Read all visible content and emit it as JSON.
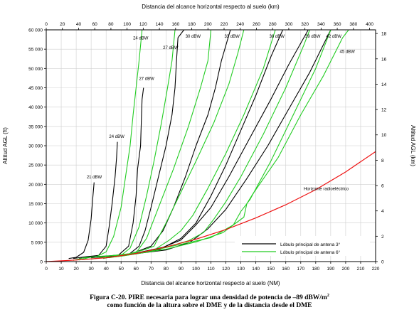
{
  "chart_data": {
    "type": "line",
    "title_top": "Distancia del alcance horizontal respecto al suelo (km)",
    "xlabel": "Distancia del alcance horizontal respecto al suelo (NM)",
    "ylabel_left": "Altitud AGL (ft)",
    "ylabel_right": "Altitud AGL (km)",
    "xlim": [
      0,
      220
    ],
    "ylim": [
      0,
      60000
    ],
    "x_ticks": [
      0,
      10,
      20,
      30,
      40,
      50,
      60,
      70,
      80,
      90,
      100,
      110,
      120,
      130,
      140,
      150,
      160,
      170,
      180,
      190,
      200,
      210,
      220
    ],
    "y_ticks": [
      0,
      5000,
      10000,
      15000,
      20000,
      25000,
      30000,
      35000,
      40000,
      45000,
      50000,
      55000,
      60000
    ],
    "y_tick_labels": [
      "0",
      "5 000",
      "10 000",
      "15 000",
      "20 000",
      "25 000",
      "30 000",
      "35 000",
      "40 000",
      "45 000",
      "50 000",
      "55 000",
      "60 000"
    ],
    "top_ticks_km": [
      0,
      20,
      40,
      60,
      80,
      100,
      120,
      140,
      160,
      180,
      200,
      220,
      240,
      260,
      280,
      300,
      320,
      340,
      360,
      380,
      400
    ],
    "right_ticks_km": [
      0,
      2,
      4,
      6,
      8,
      10,
      12,
      14,
      16,
      18
    ],
    "grid": true,
    "legend": {
      "position": "bottom-right",
      "entries": [
        {
          "label": "Lóbulo principal de antena 3°",
          "color": "#000000"
        },
        {
          "label": "Lóbulo principal de antena 6°",
          "color": "#22cc22"
        }
      ]
    },
    "horizon": {
      "label": "Horizonte radioeléctrico",
      "color": "#ee1111",
      "points": [
        [
          0,
          0
        ],
        [
          20,
          400
        ],
        [
          40,
          1000
        ],
        [
          60,
          2100
        ],
        [
          80,
          3800
        ],
        [
          100,
          5800
        ],
        [
          120,
          8300
        ],
        [
          140,
          11300
        ],
        [
          160,
          14700
        ],
        [
          180,
          18600
        ],
        [
          200,
          23200
        ],
        [
          220,
          28500
        ]
      ]
    },
    "series": [
      {
        "label": "21 dBW",
        "color": "#000000",
        "points": [
          [
            15,
            800
          ],
          [
            20,
            1100
          ],
          [
            25,
            2400
          ],
          [
            28,
            5500
          ],
          [
            30,
            11000
          ],
          [
            31,
            16000
          ],
          [
            32,
            20500
          ]
        ]
      },
      {
        "label": "24 dBW",
        "color": "#000000",
        "points": [
          [
            18,
            800
          ],
          [
            25,
            1200
          ],
          [
            35,
            1600
          ],
          [
            40,
            4000
          ],
          [
            42,
            9000
          ],
          [
            44,
            15000
          ],
          [
            46,
            22000
          ],
          [
            47,
            27000
          ],
          [
            47.5,
            31000
          ]
        ]
      },
      {
        "label": "27 dBW",
        "color": "#000000",
        "points": [
          [
            22,
            800
          ],
          [
            30,
            1300
          ],
          [
            40,
            1300
          ],
          [
            48,
            1600
          ],
          [
            55,
            4000
          ],
          [
            58,
            10000
          ],
          [
            60,
            17000
          ],
          [
            61,
            24000
          ],
          [
            63,
            30000
          ],
          [
            63.5,
            36000
          ],
          [
            64,
            42000
          ],
          [
            65,
            45000
          ]
        ]
      },
      {
        "label": "30 dBW",
        "color": "#000000",
        "points": [
          [
            30,
            1000
          ],
          [
            45,
            1600
          ],
          [
            50,
            1700
          ],
          [
            55,
            1800
          ],
          [
            62,
            4000
          ],
          [
            66,
            8000
          ],
          [
            70,
            14000
          ],
          [
            75,
            22000
          ],
          [
            80,
            30000
          ],
          [
            84,
            38000
          ],
          [
            86,
            45000
          ],
          [
            87,
            52000
          ],
          [
            88,
            58000
          ],
          [
            92,
            60000
          ]
        ]
      },
      {
        "label": "33 dBW",
        "color": "#000000",
        "points": [
          [
            40,
            1200
          ],
          [
            55,
            1900
          ],
          [
            60,
            2500
          ],
          [
            70,
            4000
          ],
          [
            78,
            8000
          ],
          [
            85,
            14000
          ],
          [
            93,
            22000
          ],
          [
            100,
            30000
          ],
          [
            108,
            38000
          ],
          [
            113,
            45000
          ],
          [
            117,
            52000
          ],
          [
            123,
            60000
          ]
        ]
      },
      {
        "label": "36 dBW",
        "color": "#000000",
        "points": [
          [
            45,
            1500
          ],
          [
            60,
            2000
          ],
          [
            75,
            3000
          ],
          [
            90,
            6000
          ],
          [
            100,
            10000
          ],
          [
            110,
            17000
          ],
          [
            120,
            25000
          ],
          [
            130,
            34000
          ],
          [
            140,
            43000
          ],
          [
            150,
            53000
          ],
          [
            158,
            60000
          ]
        ]
      },
      {
        "label": "39 dBW",
        "color": "#000000",
        "points": [
          [
            48,
            1500
          ],
          [
            60,
            2200
          ],
          [
            78,
            3700
          ],
          [
            90,
            5600
          ],
          [
            100,
            9500
          ],
          [
            110,
            14000
          ],
          [
            122,
            22000
          ],
          [
            136,
            32000
          ],
          [
            150,
            42000
          ],
          [
            162,
            51000
          ],
          [
            175,
            60000
          ]
        ]
      },
      {
        "label": "42 dBW",
        "color": "#000000",
        "points": [
          [
            50,
            1600
          ],
          [
            80,
            3000
          ],
          [
            96,
            5000
          ],
          [
            108,
            8500
          ],
          [
            120,
            13500
          ],
          [
            134,
            21500
          ],
          [
            148,
            30000
          ],
          [
            162,
            39500
          ],
          [
            176,
            49000
          ],
          [
            190,
            60000
          ]
        ]
      },
      {
        "label": "24 dBW",
        "color": "#22cc22",
        "points": [
          [
            18,
            300
          ],
          [
            25,
            1000
          ],
          [
            33,
            1200
          ],
          [
            40,
            2500
          ],
          [
            45,
            6500
          ],
          [
            50,
            14000
          ],
          [
            53,
            22000
          ],
          [
            56,
            30000
          ],
          [
            58,
            38000
          ],
          [
            60,
            45000
          ],
          [
            62,
            52000
          ],
          [
            64,
            60000
          ]
        ]
      },
      {
        "label": "27 dBW",
        "color": "#22cc22",
        "points": [
          [
            22,
            400
          ],
          [
            30,
            1200
          ],
          [
            40,
            1500
          ],
          [
            50,
            1600
          ],
          [
            56,
            3500
          ],
          [
            62,
            9000
          ],
          [
            67,
            17000
          ],
          [
            72,
            26000
          ],
          [
            77,
            36000
          ],
          [
            81,
            45000
          ],
          [
            84,
            52000
          ],
          [
            86,
            60000
          ]
        ]
      },
      {
        "label": "30 dBW",
        "color": "#22cc22",
        "points": [
          [
            30,
            600
          ],
          [
            45,
            1600
          ],
          [
            55,
            2000
          ],
          [
            60,
            2300
          ],
          [
            67,
            6000
          ],
          [
            75,
            14000
          ],
          [
            85,
            24000
          ],
          [
            95,
            35000
          ],
          [
            103,
            45000
          ],
          [
            108,
            52000
          ],
          [
            110,
            60000
          ]
        ]
      },
      {
        "label": "33 dBW",
        "color": "#22cc22",
        "points": [
          [
            38,
            800
          ],
          [
            55,
            2000
          ],
          [
            65,
            3000
          ],
          [
            72,
            4000
          ],
          [
            80,
            10000
          ],
          [
            90,
            18000
          ],
          [
            100,
            26000
          ],
          [
            112,
            36000
          ],
          [
            122,
            46000
          ],
          [
            128,
            54000
          ],
          [
            132,
            60000
          ]
        ]
      },
      {
        "label": "36 dBW",
        "color": "#22cc22",
        "points": [
          [
            42,
            1000
          ],
          [
            60,
            2000
          ],
          [
            72,
            3000
          ],
          [
            82,
            5500
          ],
          [
            90,
            8000
          ],
          [
            98,
            12000
          ],
          [
            108,
            19000
          ],
          [
            120,
            28000
          ],
          [
            132,
            38000
          ],
          [
            145,
            50000
          ],
          [
            153,
            60000
          ]
        ]
      },
      {
        "label": "39 dBW",
        "color": "#22cc22",
        "points": [
          [
            46,
            1200
          ],
          [
            65,
            2300
          ],
          [
            80,
            3700
          ],
          [
            95,
            5400
          ],
          [
            105,
            7500
          ],
          [
            112,
            11000
          ],
          [
            120,
            15500
          ],
          [
            130,
            22000
          ],
          [
            145,
            33000
          ],
          [
            160,
            45000
          ],
          [
            172,
            56000
          ],
          [
            176,
            60000
          ]
        ]
      },
      {
        "label": "42 dBW",
        "color": "#22cc22",
        "points": [
          [
            48,
            1300
          ],
          [
            70,
            2800
          ],
          [
            90,
            4500
          ],
          [
            110,
            6200
          ],
          [
            125,
            9500
          ],
          [
            130,
            13000
          ],
          [
            136,
            16000
          ],
          [
            150,
            26000
          ],
          [
            165,
            38000
          ],
          [
            180,
            50000
          ],
          [
            188,
            58000
          ],
          [
            190,
            60000
          ]
        ]
      },
      {
        "label": "45 dBW",
        "color": "#22cc22",
        "points": [
          [
            50,
            1400
          ],
          [
            80,
            3200
          ],
          [
            100,
            5100
          ],
          [
            118,
            7500
          ],
          [
            132,
            11500
          ],
          [
            134,
            15000
          ],
          [
            138,
            17500
          ],
          [
            155,
            27000
          ],
          [
            170,
            38000
          ],
          [
            185,
            48000
          ],
          [
            198,
            58000
          ],
          [
            202,
            60000
          ]
        ]
      }
    ],
    "curve_labels": [
      {
        "text": "21 dBW",
        "x": 27,
        "y": 21500
      },
      {
        "text": "24 dBW",
        "x": 42,
        "y": 32000
      },
      {
        "text": "24 dBW",
        "x": 58,
        "y": 57500
      },
      {
        "text": "27 dBW",
        "x": 62,
        "y": 47000
      },
      {
        "text": "27 dBW",
        "x": 78,
        "y": 55000
      },
      {
        "text": "30 dBW",
        "x": 93,
        "y": 58000
      },
      {
        "text": "33 dBW",
        "x": 119,
        "y": 58000
      },
      {
        "text": "36 dBW",
        "x": 149,
        "y": 58000
      },
      {
        "text": "39 dBW",
        "x": 173,
        "y": 58000
      },
      {
        "text": "42 dBW",
        "x": 187,
        "y": 58000
      },
      {
        "text": "45 dBW",
        "x": 196,
        "y": 54000
      },
      {
        "text": "Horizonte radioeléctrico",
        "x": 172,
        "y": 18500
      }
    ]
  },
  "caption": {
    "line1_prefix": "Figura C-20.     PIRE necesaria para lograr una densidad de potencia de –89 dBW/m",
    "line1_sup": "2",
    "line2": "como función de la altura sobre el DME y de la distancia desde el DME"
  }
}
